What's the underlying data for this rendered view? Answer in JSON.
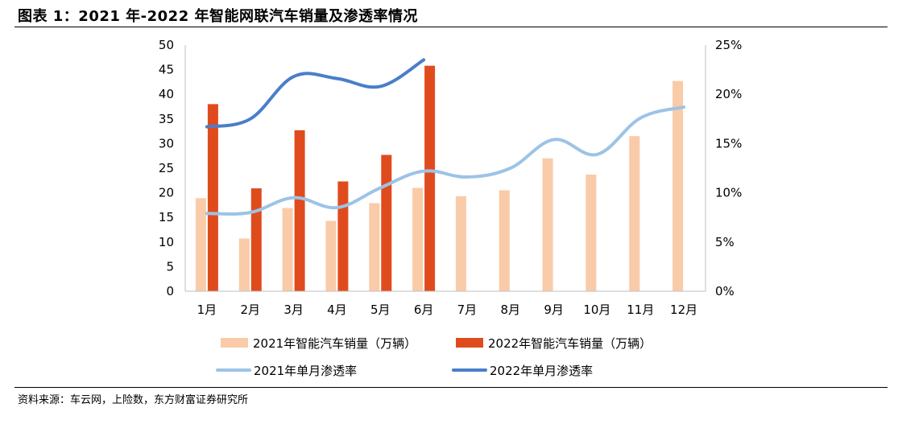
{
  "title": "图表 1：2021 年-2022 年智能网联汽车销量及渗透率情况",
  "source": "资料来源：车云网，上险数，东方财富证券研究所",
  "chart_data": {
    "type": "bar",
    "categories": [
      "1月",
      "2月",
      "3月",
      "4月",
      "5月",
      "6月",
      "7月",
      "8月",
      "9月",
      "10月",
      "11月",
      "12月"
    ],
    "y_left": {
      "min": 0,
      "max": 50,
      "ticks": [
        "0",
        "5",
        "10",
        "15",
        "20",
        "25",
        "30",
        "35",
        "40",
        "45",
        "50"
      ]
    },
    "y_right": {
      "min": 0,
      "max": 25,
      "ticks": [
        "0%",
        "5%",
        "10%",
        "15%",
        "20%",
        "25%"
      ]
    },
    "bar_series": [
      {
        "name": "2021年智能汽车销量（万辆）",
        "color": "#F9CBA8",
        "values": [
          18.9,
          10.7,
          16.9,
          14.3,
          17.9,
          21.0,
          19.3,
          20.5,
          27.0,
          23.7,
          31.5,
          42.7
        ]
      },
      {
        "name": "2022年智能汽车销量（万辆）",
        "color": "#E04B1E",
        "values": [
          38.0,
          20.9,
          32.7,
          22.3,
          27.7,
          45.8,
          null,
          null,
          null,
          null,
          null,
          null
        ]
      }
    ],
    "line_series": [
      {
        "name": "2021年单月渗透率",
        "color": "#9DC3E6",
        "axis": "right",
        "values": [
          7.9,
          8.0,
          9.5,
          8.5,
          10.5,
          12.2,
          11.6,
          12.5,
          15.4,
          13.9,
          17.6,
          18.7
        ]
      },
      {
        "name": "2022年单月渗透率",
        "color": "#4A7EC9",
        "axis": "right",
        "values": [
          16.7,
          17.5,
          21.8,
          21.6,
          20.8,
          23.5,
          null,
          null,
          null,
          null,
          null,
          null
        ]
      }
    ],
    "legend_position": "bottom",
    "grid": false
  }
}
